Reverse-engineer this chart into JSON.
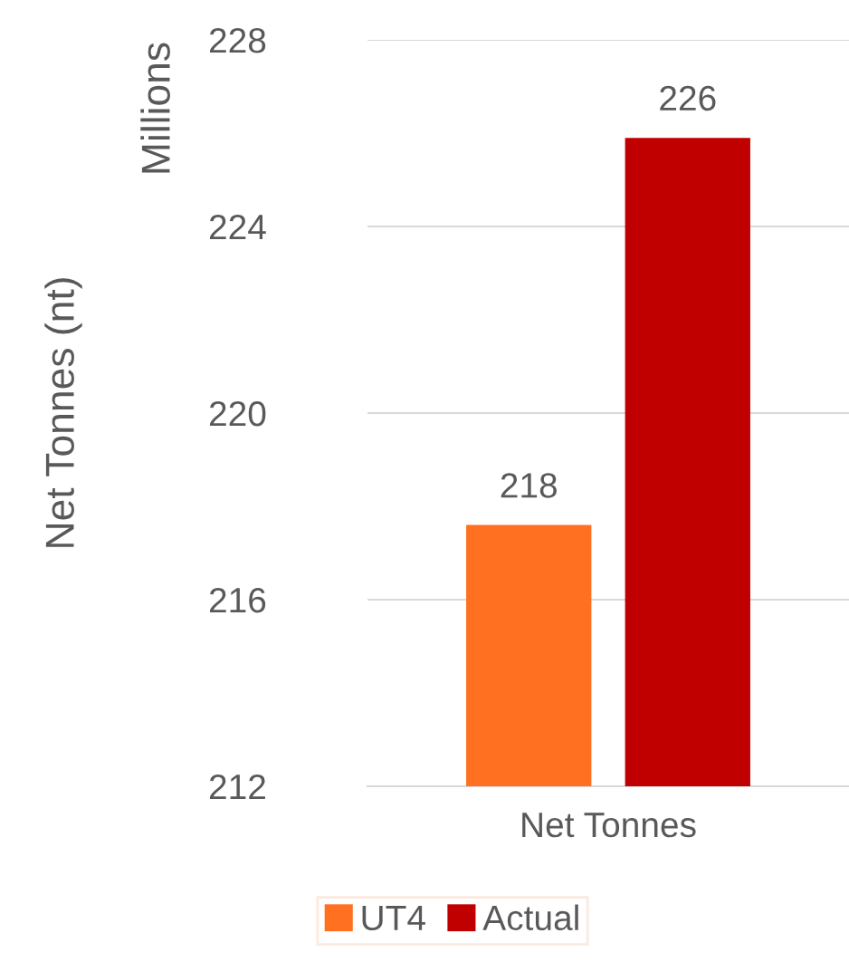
{
  "chart_data": {
    "type": "bar",
    "categories": [
      "Net Tonnes"
    ],
    "ylabel": "Net Tonnes (nt)",
    "annotations": [
      "Millions"
    ],
    "series": [
      {
        "name": "UT4",
        "color": "#ff7020",
        "values": [
          217.6
        ],
        "value_labels": [
          "218"
        ]
      },
      {
        "name": "Actual",
        "color": "#c00000",
        "values": [
          225.9
        ],
        "value_labels": [
          "226"
        ]
      }
    ],
    "ylim": [
      212,
      228
    ],
    "yticks": [
      212,
      216,
      220,
      224,
      228
    ],
    "grid": "y",
    "legend": "bottom"
  }
}
